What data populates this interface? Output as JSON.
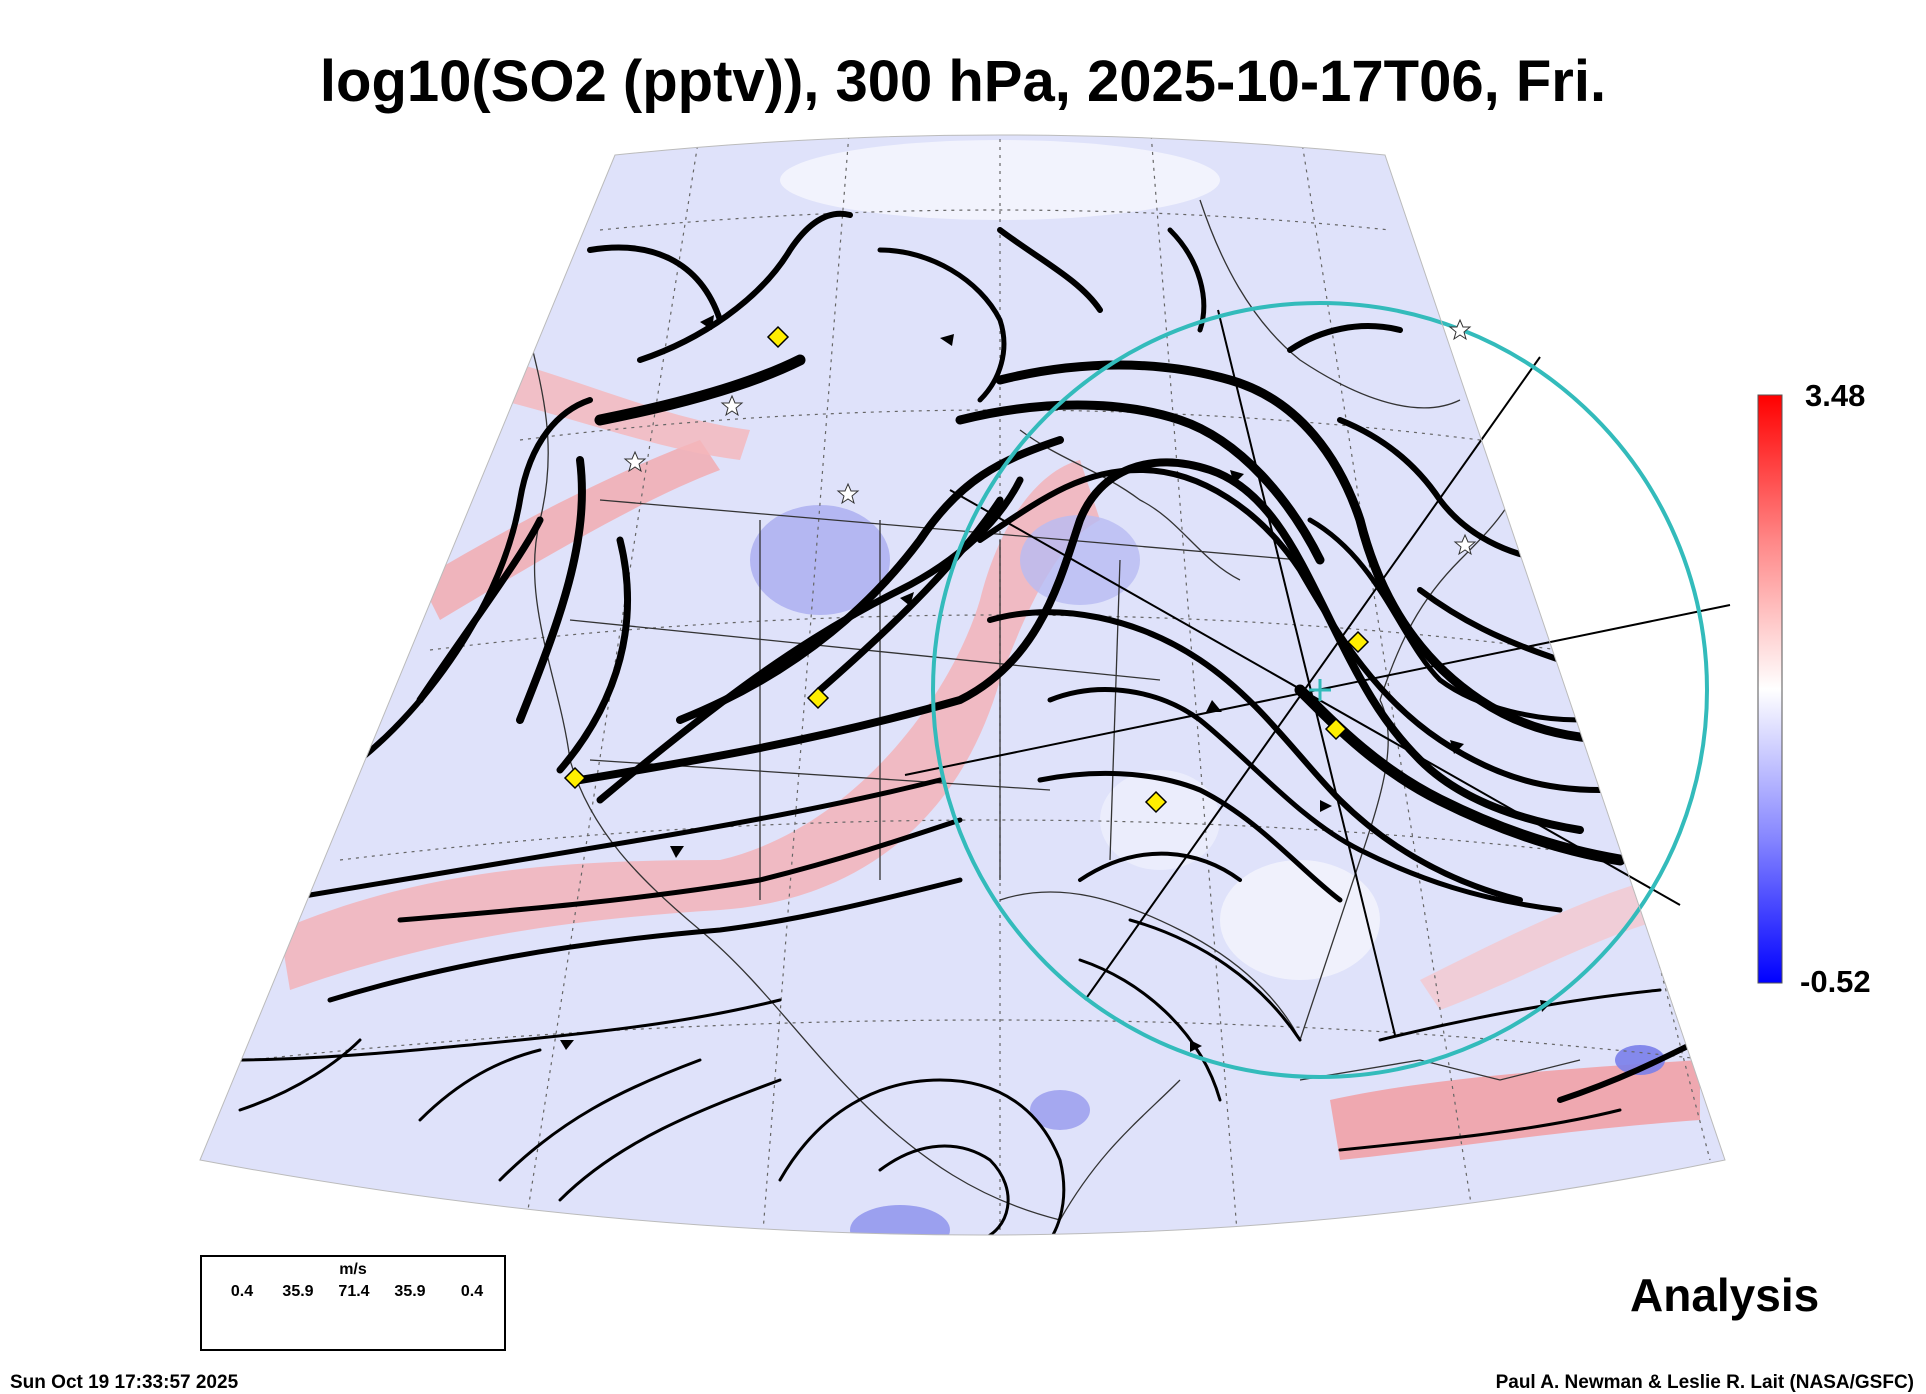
{
  "title": "log10(SO2 (pptv)), 300 hPa, 2025-10-17T06, Fri.",
  "colorbar": {
    "max_label": "3.48",
    "min_label": "-0.52",
    "colors": [
      "#0000ff",
      "#ffffff",
      "#ff0000"
    ]
  },
  "legend": {
    "unit": "m/s",
    "values": [
      "0.4",
      "35.9",
      "71.4",
      "35.9",
      "0.4"
    ]
  },
  "analysis_label": "Analysis",
  "footer": {
    "timestamp": "Sun Oct 19 17:33:57 2025",
    "credit": "Paul A. Newman & Leslie R. Lait (NASA/GSFC)"
  },
  "map": {
    "range_ring_color": "#33bbbb",
    "marker_color": "#ffee00",
    "icons": [
      "diamond-marker-icon",
      "star-marker-icon",
      "center-cross-icon"
    ]
  }
}
